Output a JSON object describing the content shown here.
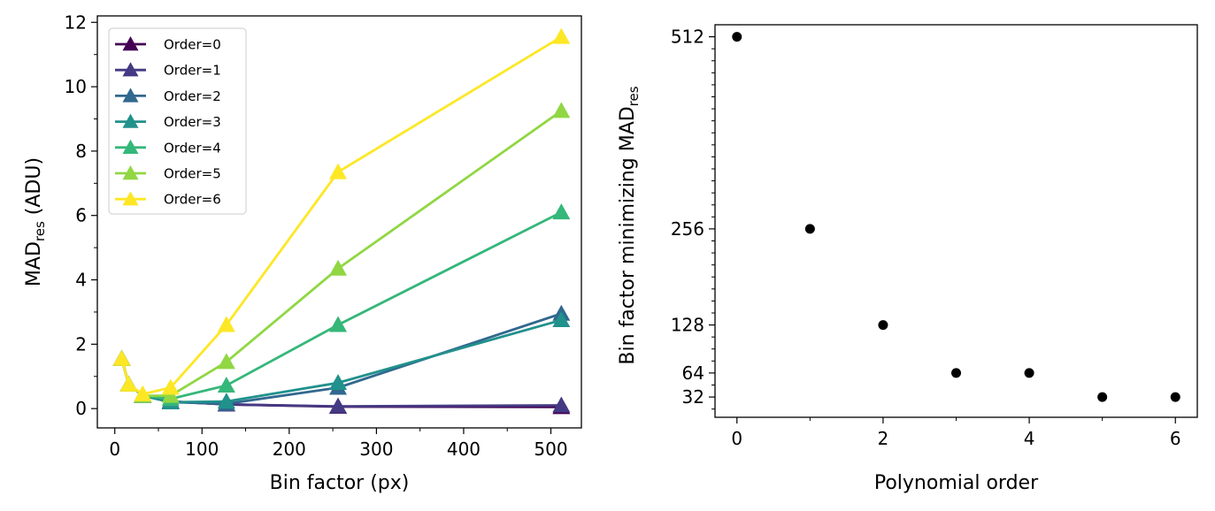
{
  "chart_data": [
    {
      "type": "line",
      "xlabel": "Bin factor (px)",
      "ylabel_main": "MAD",
      "ylabel_sub": "res",
      "ylabel_tail": " (ADU)",
      "xlim": [
        -20,
        535
      ],
      "ylim": [
        -0.6,
        12.2
      ],
      "xticks": [
        0,
        100,
        200,
        300,
        400,
        500
      ],
      "yticks": [
        0,
        2,
        4,
        6,
        8,
        10,
        12
      ],
      "x": [
        8,
        16,
        32,
        64,
        128,
        256,
        512
      ],
      "legend_position": "upper-left",
      "series": [
        {
          "name": "Order=0",
          "color": "#440154",
          "values": [
            1.55,
            0.75,
            0.4,
            0.22,
            0.13,
            0.06,
            0.05
          ]
        },
        {
          "name": "Order=1",
          "color": "#443983",
          "values": [
            1.55,
            0.75,
            0.4,
            0.22,
            0.13,
            0.07,
            0.1
          ]
        },
        {
          "name": "Order=2",
          "color": "#31688e",
          "values": [
            1.55,
            0.75,
            0.4,
            0.2,
            0.15,
            0.65,
            2.95
          ]
        },
        {
          "name": "Order=3",
          "color": "#21918c",
          "values": [
            1.55,
            0.75,
            0.4,
            0.2,
            0.22,
            0.8,
            2.75
          ]
        },
        {
          "name": "Order=4",
          "color": "#35b779",
          "values": [
            1.55,
            0.75,
            0.4,
            0.3,
            0.72,
            2.6,
            6.1
          ]
        },
        {
          "name": "Order=5",
          "color": "#90d743",
          "values": [
            1.55,
            0.75,
            0.4,
            0.4,
            1.45,
            4.35,
            9.25
          ]
        },
        {
          "name": "Order=6",
          "color": "#fde725",
          "values": [
            1.55,
            0.75,
            0.45,
            0.65,
            2.6,
            7.35,
            11.55
          ]
        }
      ]
    },
    {
      "type": "scatter",
      "xlabel": "Polynomial order",
      "ylabel_main": "Bin factor minimizing MAD",
      "ylabel_sub": "res",
      "xlim": [
        -0.3,
        6.3
      ],
      "ylim": [
        5,
        528
      ],
      "xticks": [
        0,
        2,
        4,
        6
      ],
      "yticks": [
        32,
        64,
        128,
        256,
        512
      ],
      "color": "#000000",
      "x": [
        0,
        1,
        2,
        3,
        4,
        5,
        6
      ],
      "values": [
        512,
        256,
        128,
        64,
        64,
        32,
        32
      ]
    }
  ]
}
